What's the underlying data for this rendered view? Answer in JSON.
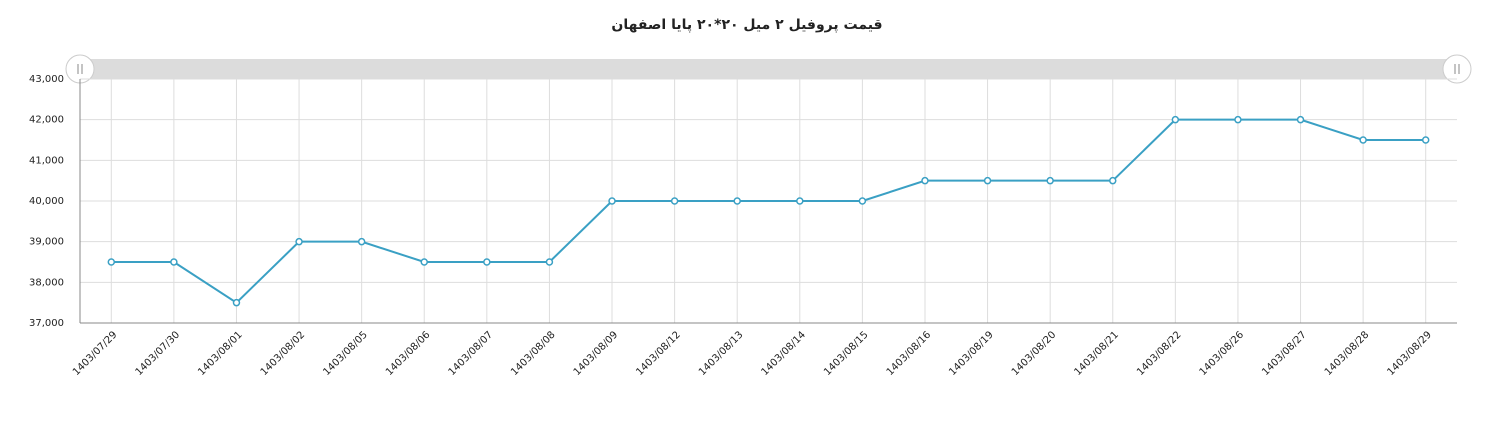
{
  "chart_data": {
    "type": "line",
    "title": "قیمت پروفیل ۲ میل ۲۰*۲۰ پایا اصفهان",
    "categories": [
      "1403/07/29",
      "1403/07/30",
      "1403/08/01",
      "1403/08/02",
      "1403/08/05",
      "1403/08/06",
      "1403/08/07",
      "1403/08/08",
      "1403/08/09",
      "1403/08/12",
      "1403/08/13",
      "1403/08/14",
      "1403/08/15",
      "1403/08/16",
      "1403/08/19",
      "1403/08/20",
      "1403/08/21",
      "1403/08/22",
      "1403/08/26",
      "1403/08/27",
      "1403/08/28",
      "1403/08/29"
    ],
    "series": [
      {
        "color": "#3aa0c4",
        "values": [
          38500,
          38500,
          37500,
          39000,
          39000,
          38500,
          38500,
          38500,
          40000,
          40000,
          40000,
          40000,
          40000,
          40500,
          40500,
          40500,
          40500,
          42000,
          42000,
          42000,
          41500,
          41500
        ]
      }
    ],
    "ylim": [
      37000,
      43000
    ],
    "yticks": [
      {
        "value": 37000,
        "label": "37,000"
      },
      {
        "value": 38000,
        "label": "38,000"
      },
      {
        "value": 39000,
        "label": "39,000"
      },
      {
        "value": 40000,
        "label": "40,000"
      },
      {
        "value": 41000,
        "label": "41,000"
      },
      {
        "value": 42000,
        "label": "42,000"
      },
      {
        "value": 43000,
        "label": "43,000"
      }
    ],
    "grid": true
  }
}
